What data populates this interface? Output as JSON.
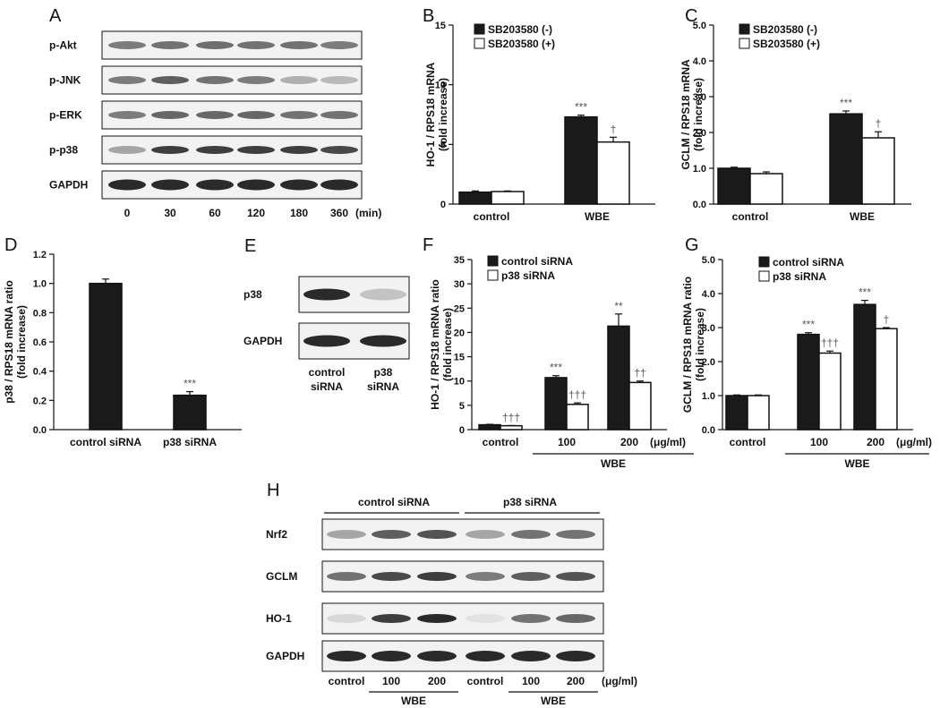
{
  "colors": {
    "dark": "#1a1a1a",
    "light": "#ffffff",
    "blot_bg": "#f2f2f2"
  },
  "panels": {
    "A": {
      "letter": "A",
      "rows": [
        "p-Akt",
        "p-JNK",
        "p-ERK",
        "p-p38",
        "GAPDH"
      ],
      "lanes": [
        "0",
        "30",
        "60",
        "120",
        "180",
        "360"
      ],
      "unit": "(min)",
      "intensity": [
        [
          0.55,
          0.6,
          0.62,
          0.6,
          0.6,
          0.55
        ],
        [
          0.55,
          0.7,
          0.6,
          0.55,
          0.3,
          0.25
        ],
        [
          0.55,
          0.65,
          0.65,
          0.65,
          0.6,
          0.6
        ],
        [
          0.35,
          0.85,
          0.85,
          0.85,
          0.85,
          0.8
        ],
        [
          0.95,
          0.95,
          0.95,
          0.95,
          0.95,
          0.95
        ]
      ]
    },
    "E": {
      "letter": "E",
      "rows": [
        "p38",
        "GAPDH"
      ],
      "lanes": [
        [
          "control",
          "siRNA"
        ],
        [
          "p38",
          "siRNA"
        ]
      ],
      "intensity": [
        [
          0.95,
          0.2
        ],
        [
          0.95,
          0.95
        ]
      ]
    },
    "H": {
      "letter": "H",
      "group_labels": [
        "control siRNA",
        "p38 siRNA"
      ],
      "rows": [
        "Nrf2",
        "GCLM",
        "HO-1",
        "GAPDH"
      ],
      "lanes": [
        "control",
        "100",
        "200",
        "control",
        "100",
        "200"
      ],
      "unit": "(μg/ml)",
      "wbe_label": "WBE",
      "intensity": [
        [
          0.35,
          0.7,
          0.75,
          0.35,
          0.6,
          0.6
        ],
        [
          0.6,
          0.8,
          0.85,
          0.55,
          0.7,
          0.75
        ],
        [
          0.1,
          0.85,
          0.95,
          0.05,
          0.6,
          0.65
        ],
        [
          0.95,
          0.95,
          0.95,
          0.95,
          0.95,
          0.95
        ]
      ]
    }
  },
  "chart_data": [
    {
      "id": "B",
      "letter": "B",
      "type": "bar",
      "ylabel": [
        "HO-1 / RPS18 mRNA",
        "(fold increase)"
      ],
      "ylim": [
        0,
        15
      ],
      "yticks": [
        0,
        5,
        10,
        15
      ],
      "ytick_labels": [
        "0",
        "5",
        "10",
        "15"
      ],
      "categories": [
        "control",
        "WBE"
      ],
      "series": [
        {
          "name": "SB203580 (-)",
          "fill": "dark",
          "values": [
            1.0,
            7.3
          ],
          "errors": [
            0.1,
            0.15
          ],
          "annotations": [
            "",
            "***"
          ]
        },
        {
          "name": "SB203580 (+)",
          "fill": "light",
          "values": [
            1.05,
            5.2
          ],
          "errors": [
            0.05,
            0.4
          ],
          "annotations": [
            "",
            "†"
          ]
        }
      ],
      "legend_position": "top-left"
    },
    {
      "id": "C",
      "letter": "C",
      "type": "bar",
      "ylabel": [
        "GCLM / RPS18 mRNA",
        "(fold increase)"
      ],
      "ylim": [
        0,
        5
      ],
      "yticks": [
        0,
        1,
        2,
        3,
        4,
        5
      ],
      "ytick_labels": [
        "0.0",
        "1.0",
        "2.0",
        "3.0",
        "4.0",
        "5.0"
      ],
      "categories": [
        "control",
        "WBE"
      ],
      "series": [
        {
          "name": "SB203580 (-)",
          "fill": "dark",
          "values": [
            1.0,
            2.52
          ],
          "errors": [
            0.03,
            0.08
          ],
          "annotations": [
            "",
            "***"
          ]
        },
        {
          "name": "SB203580 (+)",
          "fill": "light",
          "values": [
            0.85,
            1.85
          ],
          "errors": [
            0.05,
            0.17
          ],
          "annotations": [
            "",
            "†"
          ]
        }
      ],
      "legend_position": "top-left"
    },
    {
      "id": "D",
      "letter": "D",
      "type": "bar",
      "ylabel": [
        "p38 / RPS18 mRNA ratio",
        "(fold increase)"
      ],
      "ylim": [
        0,
        1.2
      ],
      "yticks": [
        0,
        0.2,
        0.4,
        0.6,
        0.8,
        1.0,
        1.2
      ],
      "ytick_labels": [
        "0.0",
        "0.2",
        "0.4",
        "0.6",
        "0.8",
        "1.0",
        "1.2"
      ],
      "categories": [
        "control siRNA",
        "p38 siRNA"
      ],
      "series": [
        {
          "name": "",
          "fill": "dark",
          "values": [
            1.0,
            0.235
          ],
          "errors": [
            0.03,
            0.025
          ],
          "annotations": [
            "",
            "***"
          ]
        }
      ]
    },
    {
      "id": "F",
      "letter": "F",
      "type": "bar",
      "ylabel": [
        "HO-1 / RPS18 mRNA ratio",
        "(fold increase)"
      ],
      "ylim": [
        0,
        35
      ],
      "yticks": [
        0,
        5,
        10,
        15,
        20,
        25,
        30,
        35
      ],
      "ytick_labels": [
        "0",
        "5",
        "10",
        "15",
        "20",
        "25",
        "30",
        "35"
      ],
      "categories": [
        "control",
        "100",
        "200"
      ],
      "unit_label": "(μg/ml)",
      "group_label": "WBE",
      "series": [
        {
          "name": "control siRNA",
          "fill": "dark",
          "values": [
            1.0,
            10.7,
            21.3
          ],
          "errors": [
            0.1,
            0.4,
            2.5
          ],
          "annotations": [
            "",
            "***",
            "**"
          ]
        },
        {
          "name": "p38 siRNA",
          "fill": "light",
          "values": [
            0.8,
            5.2,
            9.7
          ],
          "errors": [
            0.05,
            0.3,
            0.3
          ],
          "annotations": [
            "†††",
            "†††",
            "††"
          ]
        }
      ],
      "legend_position": "top-left"
    },
    {
      "id": "G",
      "letter": "G",
      "type": "bar",
      "ylabel": [
        "GCLM / RPS18 mRNA ratio",
        "(fold increase)"
      ],
      "ylim": [
        0,
        5
      ],
      "yticks": [
        0,
        1,
        2,
        3,
        4,
        5
      ],
      "ytick_labels": [
        "0.0",
        "1.0",
        "2.0",
        "3.0",
        "4.0",
        "5.0"
      ],
      "categories": [
        "control",
        "100",
        "200"
      ],
      "unit_label": "(μg/ml)",
      "group_label": "WBE",
      "series": [
        {
          "name": "control siRNA",
          "fill": "dark",
          "values": [
            1.0,
            2.8,
            3.68
          ],
          "errors": [
            0.02,
            0.05,
            0.12
          ],
          "annotations": [
            "",
            "***",
            "***"
          ]
        },
        {
          "name": "p38 siRNA",
          "fill": "light",
          "values": [
            1.0,
            2.25,
            2.97
          ],
          "errors": [
            0.02,
            0.06,
            0.03
          ],
          "annotations": [
            "",
            "†††",
            "†"
          ]
        }
      ],
      "legend_position": "top-left"
    }
  ]
}
